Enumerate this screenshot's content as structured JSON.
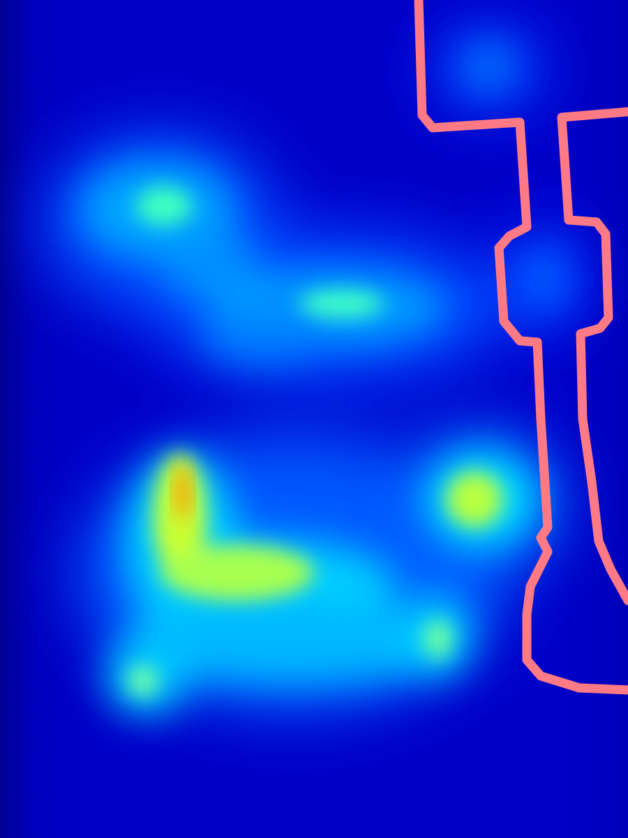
{
  "image": {
    "kind": "heatmap-overlay",
    "colormap": "jet",
    "background_color": "#0000c8",
    "outline_color": "#ff7a85"
  },
  "heat_spots": [
    {
      "name": "upper-left-blob",
      "intensity": 0.42
    },
    {
      "name": "upper-left-blob-core",
      "intensity": 0.5
    },
    {
      "name": "middle-band",
      "intensity": 0.4
    },
    {
      "name": "middle-band-core",
      "intensity": 0.48
    },
    {
      "name": "left-vertical-hotspot",
      "intensity": 0.8
    },
    {
      "name": "lower-horizontal-band",
      "intensity": 0.65
    },
    {
      "name": "lower-left-spot",
      "intensity": 0.45
    },
    {
      "name": "lower-middle-spot",
      "intensity": 0.42
    },
    {
      "name": "right-hotspot",
      "intensity": 0.62
    },
    {
      "name": "top-right-spot",
      "intensity": 0.3
    },
    {
      "name": "right-inner-spot",
      "intensity": 0.25
    }
  ]
}
